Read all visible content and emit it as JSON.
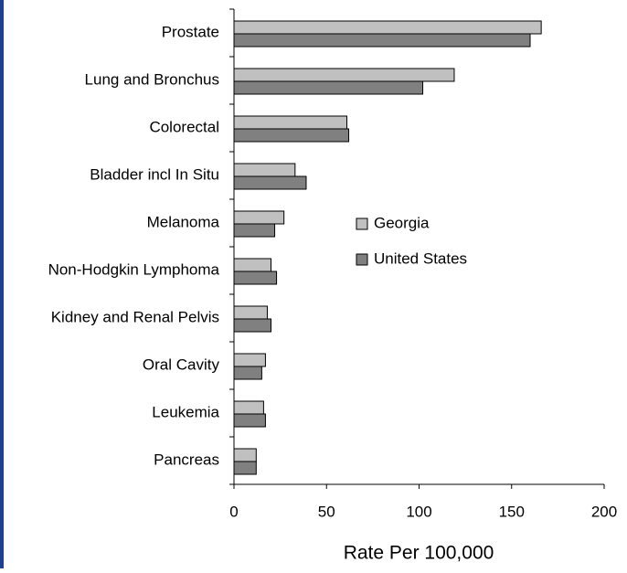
{
  "chart_data": {
    "type": "bar",
    "orientation": "horizontal",
    "categories": [
      "Prostate",
      "Lung and Bronchus",
      "Colorectal",
      "Bladder incl In Situ",
      "Melanoma",
      "Non-Hodgkin Lymphoma",
      "Kidney and Renal Pelvis",
      "Oral Cavity",
      "Leukemia",
      "Pancreas"
    ],
    "series": [
      {
        "name": "Georgia",
        "color": "#c0c0c0",
        "values": [
          166,
          119,
          61,
          33,
          27,
          20,
          18,
          17,
          16,
          12
        ]
      },
      {
        "name": "United States",
        "color": "#808080",
        "values": [
          160,
          102,
          62,
          39,
          22,
          23,
          20,
          15,
          17,
          12
        ]
      }
    ],
    "xlabel": "Rate Per 100,000",
    "xlim": [
      0,
      200
    ],
    "xticks": [
      0,
      50,
      100,
      150,
      200
    ],
    "legend": "right"
  }
}
